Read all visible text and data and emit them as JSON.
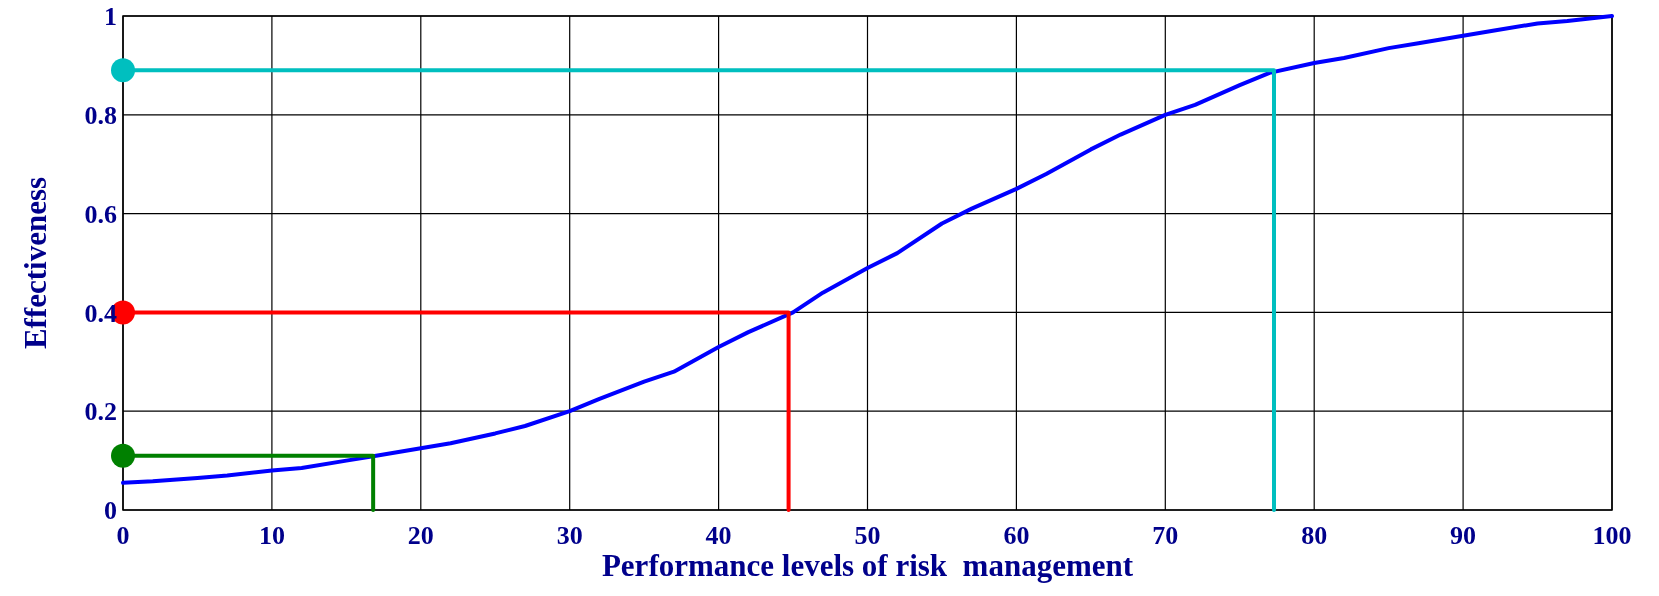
{
  "chart_data": {
    "type": "line",
    "xlabel": "Performance levels of risk  management",
    "ylabel": "Effectiveness",
    "xlim": [
      0,
      100
    ],
    "xticks": [
      0,
      10,
      20,
      30,
      40,
      50,
      60,
      70,
      80,
      90,
      100
    ],
    "ylim": [
      0,
      1
    ],
    "yticks": [
      0,
      0.2,
      0.4,
      0.6,
      0.8,
      1
    ],
    "grid": true,
    "series": [
      {
        "color": "#0000ff",
        "x": [
          0,
          2,
          5,
          7,
          10,
          12,
          15,
          17,
          20,
          22,
          25,
          27,
          30,
          32,
          35,
          37,
          40,
          42,
          45,
          47,
          50,
          52,
          55,
          57,
          60,
          62,
          65,
          67,
          70,
          72,
          75,
          77,
          80,
          82,
          85,
          87,
          90,
          92,
          95,
          97,
          100
        ],
        "values": [
          0.055,
          0.058,
          0.065,
          0.07,
          0.08,
          0.085,
          0.1,
          0.11,
          0.125,
          0.135,
          0.155,
          0.17,
          0.2,
          0.225,
          0.26,
          0.28,
          0.33,
          0.36,
          0.4,
          0.44,
          0.49,
          0.52,
          0.58,
          0.61,
          0.65,
          0.68,
          0.73,
          0.76,
          0.8,
          0.82,
          0.86,
          0.885,
          0.905,
          0.915,
          0.935,
          0.945,
          0.96,
          0.97,
          0.985,
          0.99,
          1.0
        ]
      },
      {
        "color": "#008000",
        "x": [
          0,
          16.8,
          16.8
        ],
        "values": [
          0.11,
          0.11,
          0
        ]
      },
      {
        "color": "#ff0000",
        "x": [
          0,
          44.7,
          44.7
        ],
        "values": [
          0.4,
          0.4,
          0
        ]
      },
      {
        "color": "#00bfbf",
        "x": [
          0,
          77.3,
          77.3
        ],
        "values": [
          0.89,
          0.89,
          0
        ]
      },
      {
        "type": "scatter",
        "marker": "circle",
        "color": "#008000",
        "x": [
          0
        ],
        "values": [
          0.11
        ]
      },
      {
        "type": "scatter",
        "marker": "circle",
        "color": "#ff0000",
        "x": [
          0
        ],
        "values": [
          0.4
        ]
      },
      {
        "type": "scatter",
        "marker": "circle",
        "color": "#00bfbf",
        "x": [
          0
        ],
        "values": [
          0.89
        ]
      }
    ]
  }
}
